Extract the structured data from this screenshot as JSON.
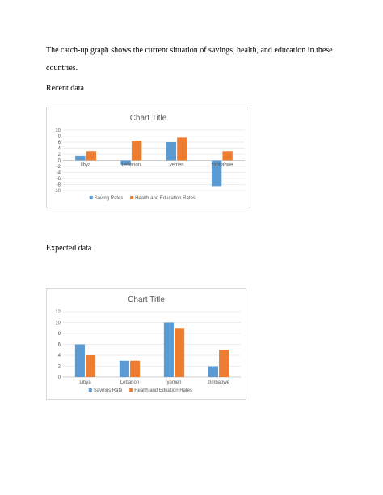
{
  "document": {
    "intro": "The catch-up graph shows the current situation of savings, health, and education in these countries.",
    "recent_label": "Recent data",
    "expected_label": "Expected data"
  },
  "chart_data": [
    {
      "type": "bar",
      "title": "Chart Title",
      "categories": [
        "libya",
        "Lebanon",
        "yemen",
        "zimbabwe"
      ],
      "series": [
        {
          "name": "Saving Rates",
          "values": [
            1.5,
            -1.5,
            6,
            -8.5
          ],
          "color": "#5b9bd5"
        },
        {
          "name": "Health and Education Rates",
          "values": [
            3,
            6.5,
            7.5,
            3
          ],
          "color": "#ed7d31"
        }
      ],
      "ylim": [
        -10,
        10
      ],
      "yticks": [
        -10,
        -8,
        -6,
        -4,
        -2,
        0,
        2,
        4,
        6,
        8,
        10
      ],
      "grid": true,
      "legend": "bottom"
    },
    {
      "type": "bar",
      "title": "Chart Title",
      "categories": [
        "Libya",
        "Lebanon",
        "yemen",
        "zimbabwe"
      ],
      "series": [
        {
          "name": "Savings Rate",
          "values": [
            6,
            3,
            10,
            2
          ],
          "color": "#5b9bd5"
        },
        {
          "name": "Health and Eduation Rates",
          "values": [
            4,
            3,
            9,
            5
          ],
          "color": "#ed7d31"
        }
      ],
      "ylim": [
        0,
        12
      ],
      "yticks": [
        0,
        2,
        4,
        6,
        8,
        10,
        12
      ],
      "grid": true,
      "legend": "bottom"
    }
  ]
}
